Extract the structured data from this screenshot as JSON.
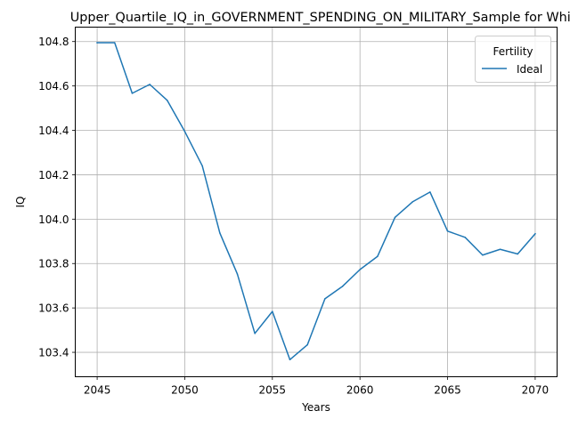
{
  "chart_data": {
    "type": "line",
    "title": "Upper_Quartile_IQ_in_GOVERNMENT_SPENDING_ON_MILITARY_Sample for White",
    "xlabel": "Years",
    "ylabel": "IQ",
    "xlim": [
      2043.75,
      2071.25
    ],
    "ylim": [
      103.29,
      104.865
    ],
    "xticks": [
      2045,
      2050,
      2055,
      2060,
      2065,
      2070
    ],
    "yticks": [
      103.4,
      103.6,
      103.8,
      104.0,
      104.2,
      104.4,
      104.6,
      104.8
    ],
    "xtick_labels": [
      "2045",
      "2050",
      "2055",
      "2060",
      "2065",
      "2070"
    ],
    "ytick_labels": [
      "103.4",
      "103.6",
      "103.8",
      "104.0",
      "104.2",
      "104.4",
      "104.6",
      "104.8"
    ],
    "grid": true,
    "legend": {
      "title": "Fertility",
      "position": "top-right"
    },
    "series": [
      {
        "name": "Ideal",
        "color": "#1f77b4",
        "x": [
          2045,
          2046,
          2047,
          2048,
          2049,
          2050,
          2051,
          2052,
          2053,
          2054,
          2055,
          2056,
          2057,
          2058,
          2059,
          2060,
          2061,
          2062,
          2063,
          2064,
          2065,
          2066,
          2067,
          2068,
          2069,
          2070
        ],
        "y": [
          104.795,
          104.795,
          104.567,
          104.607,
          104.535,
          104.395,
          104.24,
          103.938,
          103.753,
          103.485,
          103.584,
          103.367,
          103.434,
          103.641,
          103.697,
          103.773,
          103.832,
          104.008,
          104.078,
          104.122,
          103.946,
          103.918,
          103.838,
          103.864,
          103.843,
          103.934
        ]
      }
    ]
  }
}
